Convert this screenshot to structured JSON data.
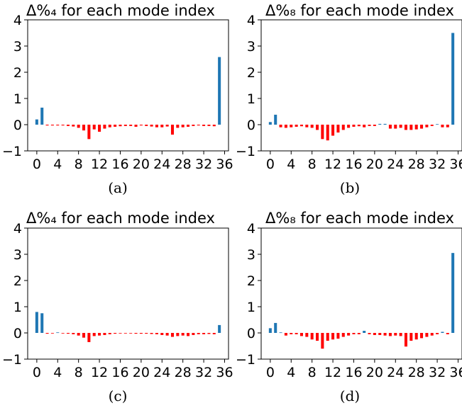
{
  "colors": {
    "positive": "#1f77b4",
    "negative": "#ff0000",
    "axis": "#000000",
    "background": "#ffffff"
  },
  "chart_data": [
    {
      "type": "bar",
      "title": "Δ%₄ for each mode index",
      "caption": "(a)",
      "xlabel": "",
      "ylabel": "",
      "xlim": [
        -1.75,
        36.75
      ],
      "ylim": [
        -1,
        4
      ],
      "xticks": [
        0,
        4,
        8,
        12,
        16,
        20,
        24,
        28,
        32,
        36
      ],
      "yticks": [
        -1,
        0,
        1,
        2,
        3,
        4
      ],
      "grid": false,
      "x": [
        0,
        1,
        2,
        3,
        4,
        5,
        6,
        7,
        8,
        9,
        10,
        11,
        12,
        13,
        14,
        15,
        16,
        17,
        18,
        19,
        20,
        21,
        22,
        23,
        24,
        25,
        26,
        27,
        28,
        29,
        30,
        31,
        32,
        33,
        34,
        35
      ],
      "values": [
        0.2,
        0.65,
        -0.03,
        -0.03,
        -0.03,
        -0.03,
        -0.05,
        -0.07,
        -0.12,
        -0.22,
        -0.55,
        -0.18,
        -0.27,
        -0.15,
        -0.1,
        -0.08,
        -0.06,
        -0.05,
        -0.05,
        -0.08,
        -0.03,
        -0.05,
        -0.07,
        -0.1,
        -0.1,
        -0.07,
        -0.38,
        -0.12,
        -0.1,
        -0.08,
        -0.05,
        -0.03,
        -0.05,
        -0.05,
        -0.06,
        2.58
      ]
    },
    {
      "type": "bar",
      "title": "Δ%₈ for each mode index",
      "caption": "(b)",
      "xlabel": "",
      "ylabel": "",
      "xlim": [
        -1.75,
        36.75
      ],
      "ylim": [
        -1,
        4
      ],
      "xticks": [
        0,
        4,
        8,
        12,
        16,
        20,
        24,
        28,
        32,
        36
      ],
      "yticks": [
        -1,
        0,
        1,
        2,
        3,
        4
      ],
      "grid": false,
      "x": [
        0,
        1,
        2,
        3,
        4,
        5,
        6,
        7,
        8,
        9,
        10,
        11,
        12,
        13,
        14,
        15,
        16,
        17,
        18,
        19,
        20,
        21,
        22,
        23,
        24,
        25,
        26,
        27,
        28,
        29,
        30,
        31,
        32,
        33,
        34,
        35
      ],
      "values": [
        0.1,
        0.38,
        -0.1,
        -0.12,
        -0.1,
        -0.08,
        -0.06,
        -0.1,
        -0.12,
        -0.2,
        -0.55,
        -0.6,
        -0.42,
        -0.3,
        -0.2,
        -0.12,
        -0.08,
        -0.06,
        -0.1,
        -0.05,
        -0.05,
        0.03,
        0.03,
        -0.15,
        -0.15,
        -0.12,
        -0.2,
        -0.2,
        -0.18,
        -0.15,
        -0.1,
        -0.05,
        0.02,
        -0.1,
        -0.1,
        3.5
      ]
    },
    {
      "type": "bar",
      "title": "Δ%₄ for each mode index",
      "caption": "(c)",
      "xlabel": "",
      "ylabel": "",
      "xlim": [
        -1.75,
        36.75
      ],
      "ylim": [
        -1,
        4
      ],
      "xticks": [
        0,
        4,
        8,
        12,
        16,
        20,
        24,
        28,
        32,
        36
      ],
      "yticks": [
        -1,
        0,
        1,
        2,
        3,
        4
      ],
      "grid": false,
      "x": [
        0,
        1,
        2,
        3,
        4,
        5,
        6,
        7,
        8,
        9,
        10,
        11,
        12,
        13,
        14,
        15,
        16,
        17,
        18,
        19,
        20,
        21,
        22,
        23,
        24,
        25,
        26,
        27,
        28,
        29,
        30,
        31,
        32,
        33,
        34,
        35
      ],
      "values": [
        0.8,
        0.75,
        -0.03,
        -0.02,
        0.02,
        -0.02,
        -0.03,
        -0.05,
        -0.1,
        -0.18,
        -0.35,
        -0.12,
        -0.1,
        -0.08,
        -0.05,
        -0.03,
        -0.02,
        -0.01,
        -0.02,
        -0.03,
        -0.03,
        -0.03,
        -0.04,
        -0.05,
        -0.08,
        -0.1,
        -0.15,
        -0.12,
        -0.1,
        -0.12,
        -0.08,
        -0.05,
        -0.05,
        -0.04,
        -0.05,
        0.3
      ]
    },
    {
      "type": "bar",
      "title": "Δ%₈ for each mode index",
      "caption": "(d)",
      "xlabel": "",
      "ylabel": "",
      "xlim": [
        -1.75,
        36.75
      ],
      "ylim": [
        -1,
        4
      ],
      "xticks": [
        0,
        4,
        8,
        12,
        16,
        20,
        24,
        28,
        32,
        36
      ],
      "yticks": [
        -1,
        0,
        1,
        2,
        3,
        4
      ],
      "grid": false,
      "x": [
        0,
        1,
        2,
        3,
        4,
        5,
        6,
        7,
        8,
        9,
        10,
        11,
        12,
        13,
        14,
        15,
        16,
        17,
        18,
        19,
        20,
        21,
        22,
        23,
        24,
        25,
        26,
        27,
        28,
        29,
        30,
        31,
        32,
        33,
        34,
        35
      ],
      "values": [
        0.18,
        0.38,
        0.02,
        -0.1,
        -0.05,
        -0.05,
        -0.12,
        -0.15,
        -0.25,
        -0.3,
        -0.6,
        -0.3,
        -0.25,
        -0.22,
        -0.15,
        -0.1,
        -0.05,
        -0.05,
        0.08,
        -0.05,
        -0.08,
        -0.08,
        -0.1,
        -0.12,
        -0.1,
        -0.12,
        -0.52,
        -0.3,
        -0.25,
        -0.2,
        -0.15,
        -0.1,
        -0.05,
        0.04,
        -0.05,
        3.05
      ]
    }
  ]
}
